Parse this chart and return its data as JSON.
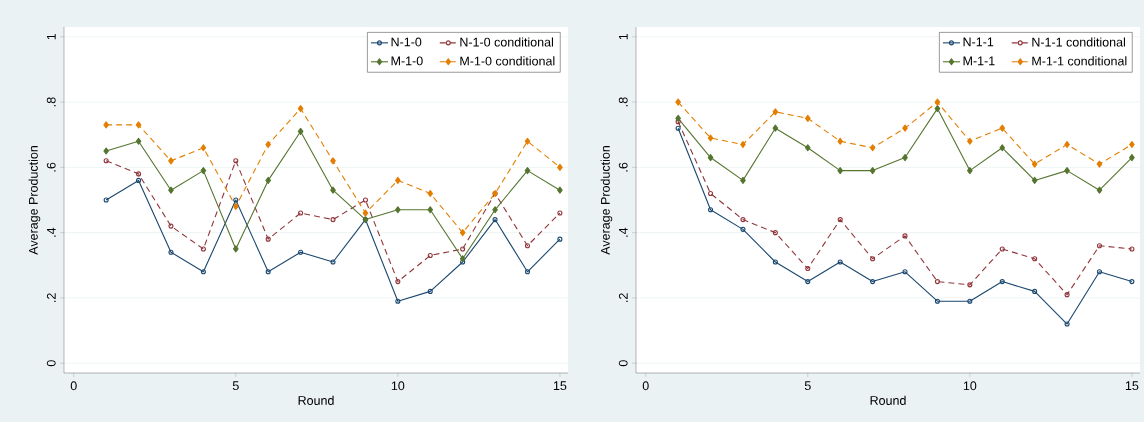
{
  "chart_data": [
    {
      "type": "line",
      "xlabel": "Round",
      "ylabel": "Average Production",
      "x": [
        1,
        2,
        3,
        4,
        5,
        6,
        7,
        8,
        9,
        10,
        11,
        12,
        13,
        14,
        15
      ],
      "xlim": [
        -0.3,
        15.25
      ],
      "ylim": [
        -0.03,
        1.03
      ],
      "xticks": [
        0,
        5,
        10,
        15
      ],
      "yticks": [
        0,
        {
          "value": 0.2,
          "label": ".2"
        },
        {
          "value": 0.4,
          "label": ".4"
        },
        {
          "value": 0.6,
          "label": ".6"
        },
        {
          "value": 0.8,
          "label": ".8"
        },
        1
      ],
      "grid": "y",
      "legend": "top right",
      "series": [
        {
          "name": "N-1-0",
          "color": "#1a476f",
          "marker": "circle",
          "line_style": "solid",
          "values": [
            0.5,
            0.56,
            0.34,
            0.28,
            0.5,
            0.28,
            0.34,
            0.31,
            0.44,
            0.19,
            0.22,
            0.31,
            0.44,
            0.28,
            0.38
          ]
        },
        {
          "name": "N-1-0 conditional",
          "color": "#90353b",
          "marker": "circle",
          "line_style": "dashed",
          "values": [
            0.62,
            0.58,
            0.42,
            0.35,
            0.62,
            0.38,
            0.46,
            0.44,
            0.5,
            0.25,
            0.33,
            0.35,
            0.52,
            0.36,
            0.46
          ]
        },
        {
          "name": "M-1-0",
          "color": "#55752f",
          "marker": "diamond",
          "line_style": "solid",
          "values": [
            0.65,
            0.68,
            0.53,
            0.59,
            0.35,
            0.56,
            0.71,
            0.53,
            0.44,
            0.47,
            0.47,
            0.32,
            0.47,
            0.59,
            0.53
          ]
        },
        {
          "name": "M-1-0 conditional",
          "color": "#e37e00",
          "marker": "diamond",
          "line_style": "dashed",
          "values": [
            0.73,
            0.73,
            0.62,
            0.66,
            0.48,
            0.67,
            0.78,
            0.62,
            0.46,
            0.56,
            0.52,
            0.4,
            0.52,
            0.68,
            0.6
          ]
        }
      ]
    },
    {
      "type": "line",
      "xlabel": "Round",
      "ylabel": "Average Production",
      "x": [
        1,
        2,
        3,
        4,
        5,
        6,
        7,
        8,
        9,
        10,
        11,
        12,
        13,
        14,
        15
      ],
      "xlim": [
        -0.3,
        15.25
      ],
      "ylim": [
        -0.03,
        1.03
      ],
      "xticks": [
        0,
        5,
        10,
        15
      ],
      "yticks": [
        0,
        {
          "value": 0.2,
          "label": ".2"
        },
        {
          "value": 0.4,
          "label": ".4"
        },
        {
          "value": 0.6,
          "label": ".6"
        },
        {
          "value": 0.8,
          "label": ".8"
        },
        1
      ],
      "grid": "y",
      "legend": "top right",
      "series": [
        {
          "name": "N-1-1",
          "color": "#1a476f",
          "marker": "circle",
          "line_style": "solid",
          "values": [
            0.72,
            0.47,
            0.41,
            0.31,
            0.25,
            0.31,
            0.25,
            0.28,
            0.19,
            0.19,
            0.25,
            0.22,
            0.12,
            0.28,
            0.25
          ]
        },
        {
          "name": "N-1-1 conditional",
          "color": "#90353b",
          "marker": "circle",
          "line_style": "dashed",
          "values": [
            0.74,
            0.52,
            0.44,
            0.4,
            0.29,
            0.44,
            0.32,
            0.39,
            0.25,
            0.24,
            0.35,
            0.32,
            0.21,
            0.36,
            0.35
          ]
        },
        {
          "name": "M-1-1",
          "color": "#55752f",
          "marker": "diamond",
          "line_style": "solid",
          "values": [
            0.75,
            0.63,
            0.56,
            0.72,
            0.66,
            0.59,
            0.59,
            0.63,
            0.78,
            0.59,
            0.66,
            0.56,
            0.59,
            0.53,
            0.63
          ]
        },
        {
          "name": "M-1-1 conditional",
          "color": "#e37e00",
          "marker": "diamond",
          "line_style": "dashed",
          "values": [
            0.8,
            0.69,
            0.67,
            0.77,
            0.75,
            0.68,
            0.66,
            0.72,
            0.8,
            0.68,
            0.72,
            0.61,
            0.67,
            0.61,
            0.67
          ]
        }
      ]
    }
  ]
}
